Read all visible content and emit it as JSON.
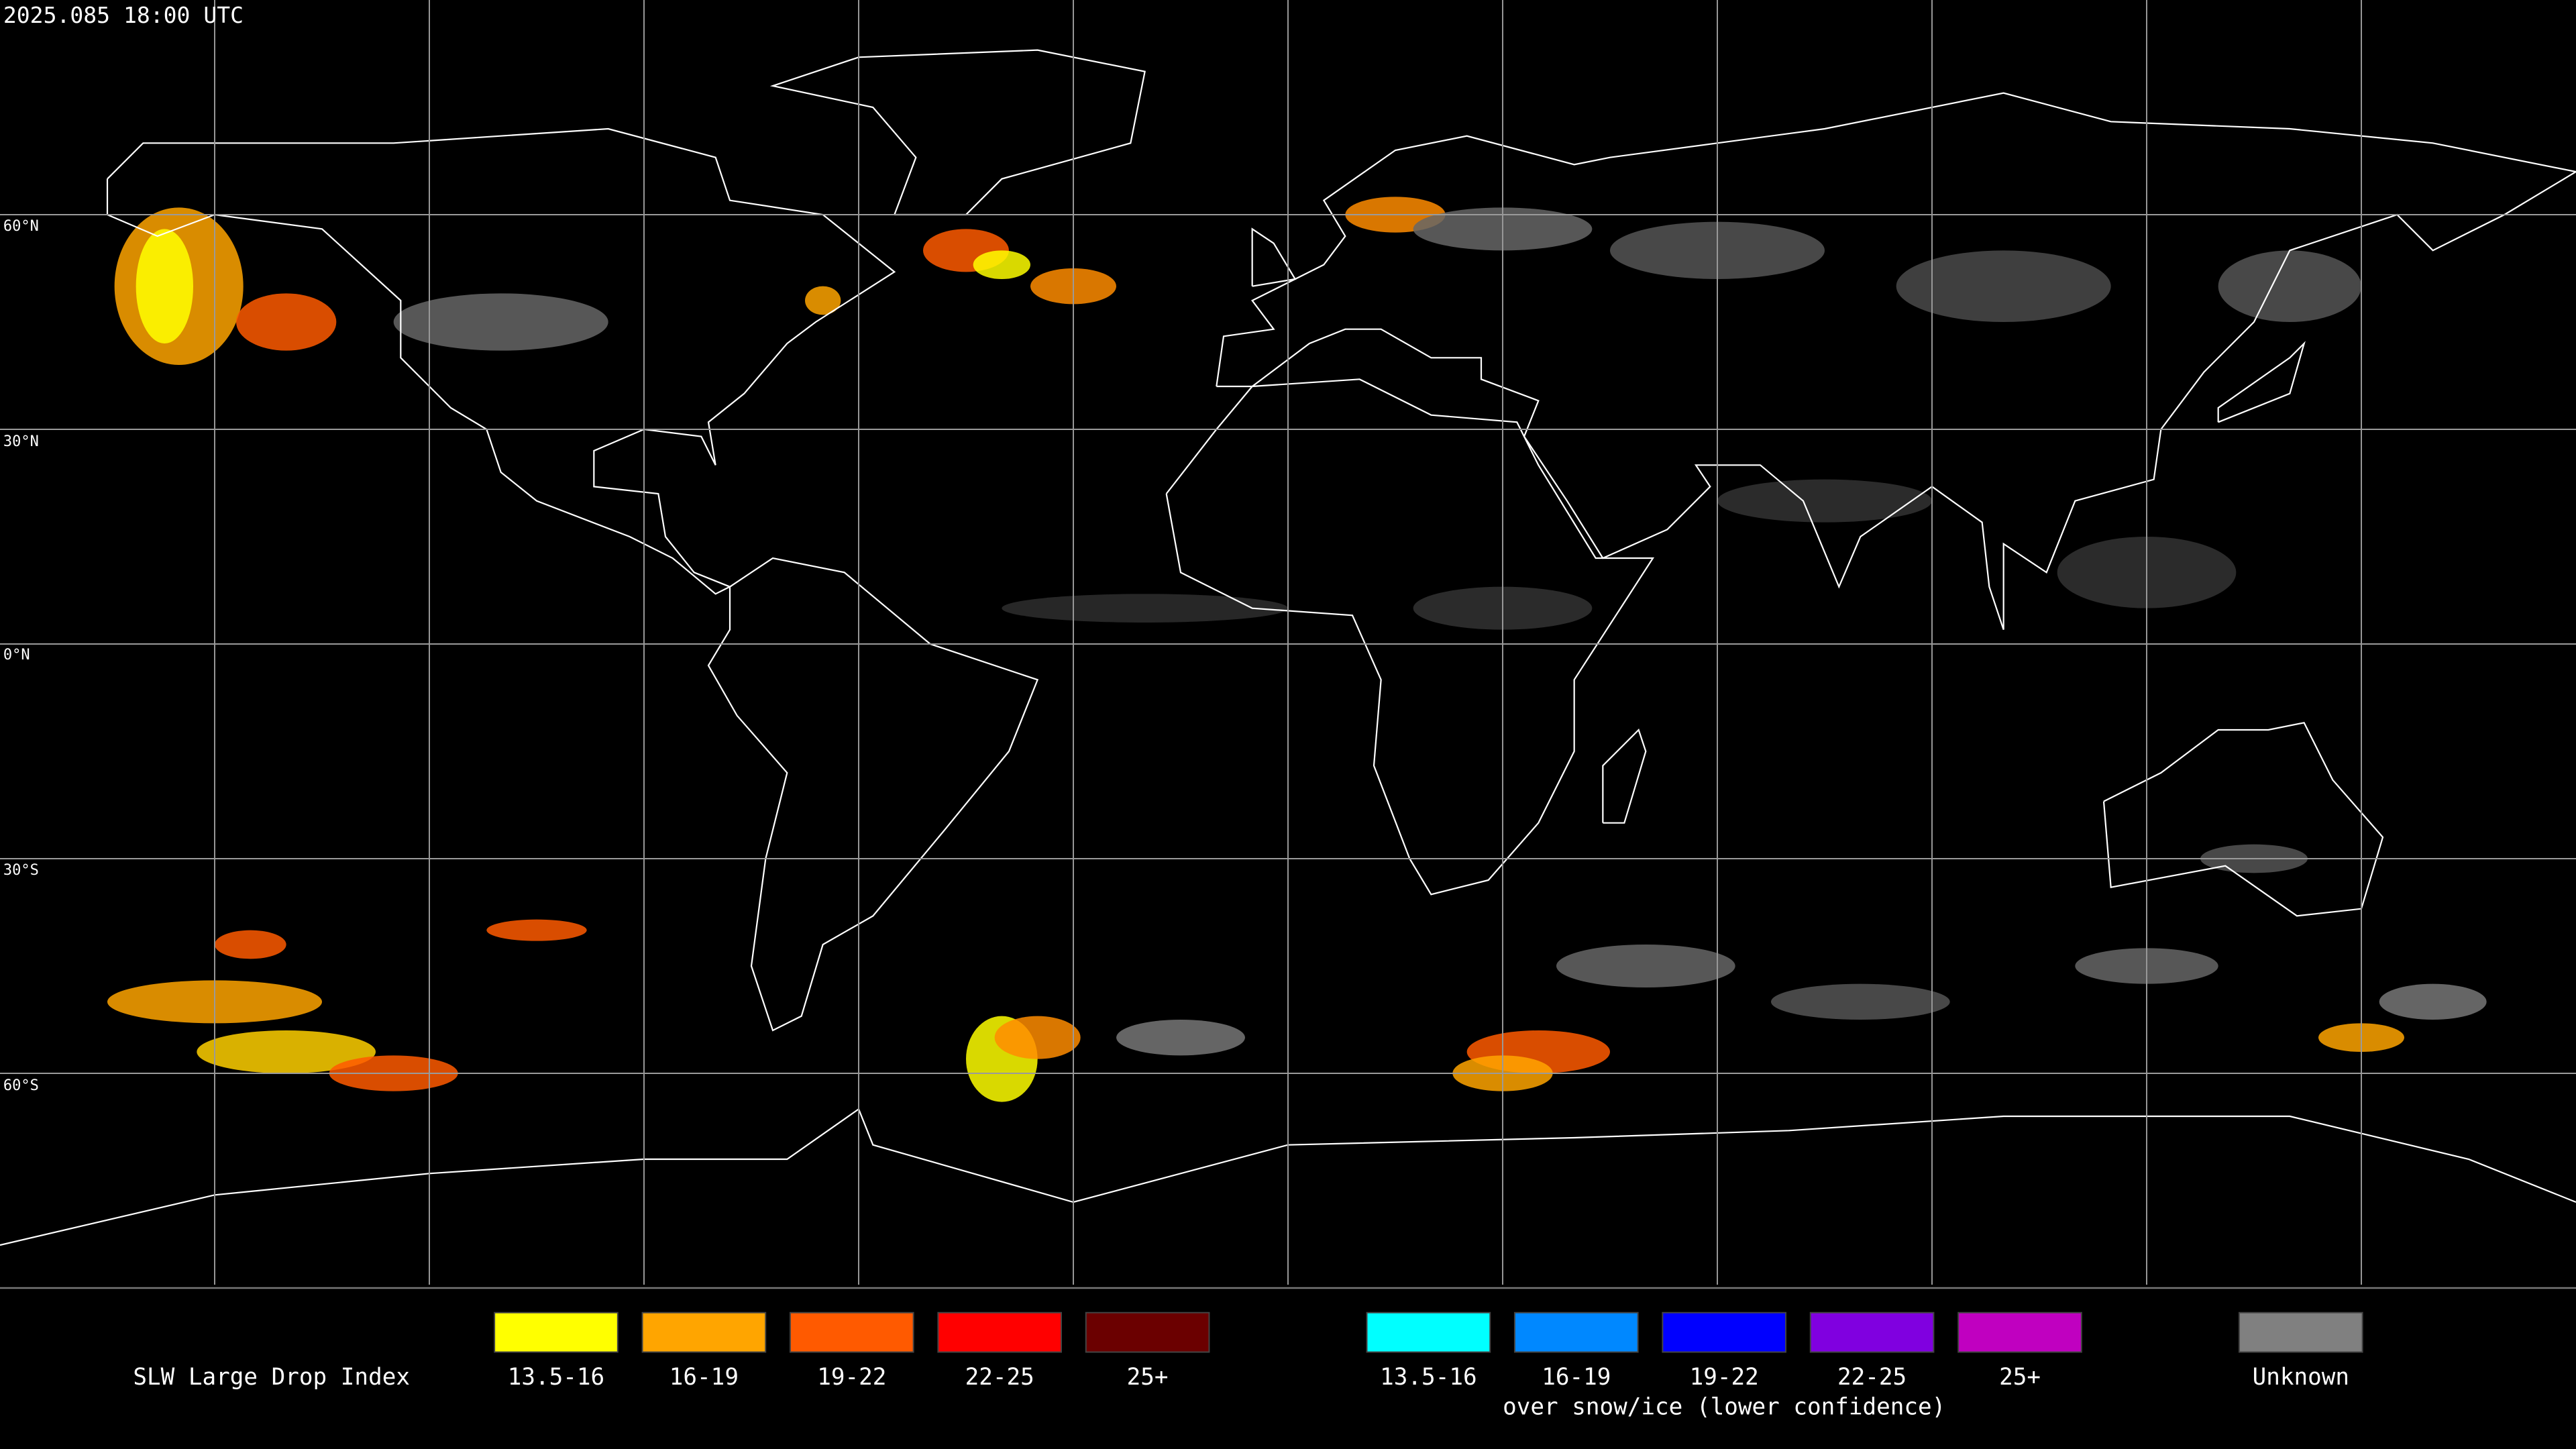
{
  "header": {
    "timestamp": "2025.085 18:00 UTC"
  },
  "map": {
    "latitude_labels": [
      "60°N",
      "30°N",
      "0°N",
      "30°S",
      "60°S"
    ]
  },
  "legend": {
    "title": "SLW Large Drop Index",
    "groups": [
      {
        "items": [
          {
            "label": "13.5-16",
            "color": "#ffff00"
          },
          {
            "label": "16-19",
            "color": "#ffa500"
          },
          {
            "label": "19-22",
            "color": "#ff5a00"
          },
          {
            "label": "22-25",
            "color": "#ff0000"
          },
          {
            "label": "25+",
            "color": "#6b0000"
          }
        ]
      },
      {
        "items": [
          {
            "label": "13.5-16",
            "color": "#00ffff"
          },
          {
            "label": "16-19",
            "color": "#0088ff"
          },
          {
            "label": "19-22",
            "color": "#0000ff"
          },
          {
            "label": "22-25",
            "color": "#8000e0"
          },
          {
            "label": "25+",
            "color": "#c000c0"
          }
        ],
        "caption": "over snow/ice (lower confidence)"
      },
      {
        "items": [
          {
            "label": "Unknown",
            "color": "#808080"
          }
        ]
      }
    ]
  }
}
